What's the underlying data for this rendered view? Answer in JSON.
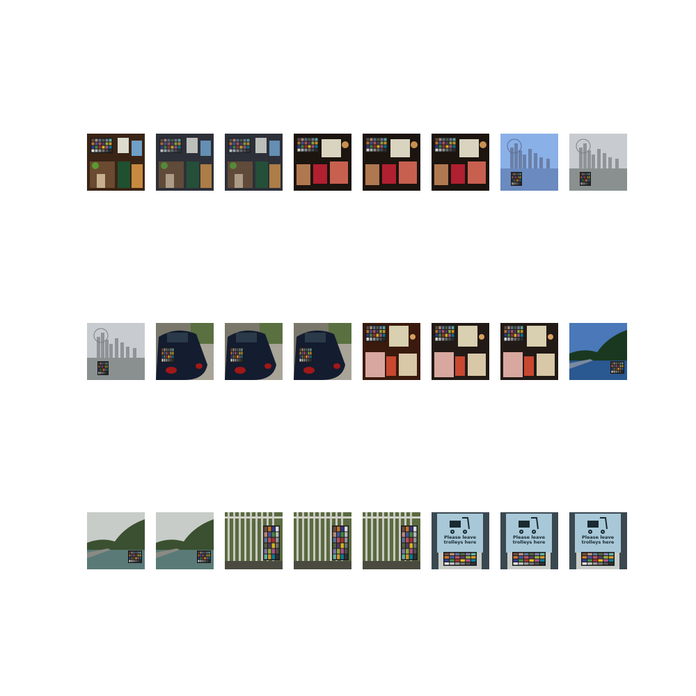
{
  "sign_text": [
    "Please leave",
    "trolleys here"
  ]
}
